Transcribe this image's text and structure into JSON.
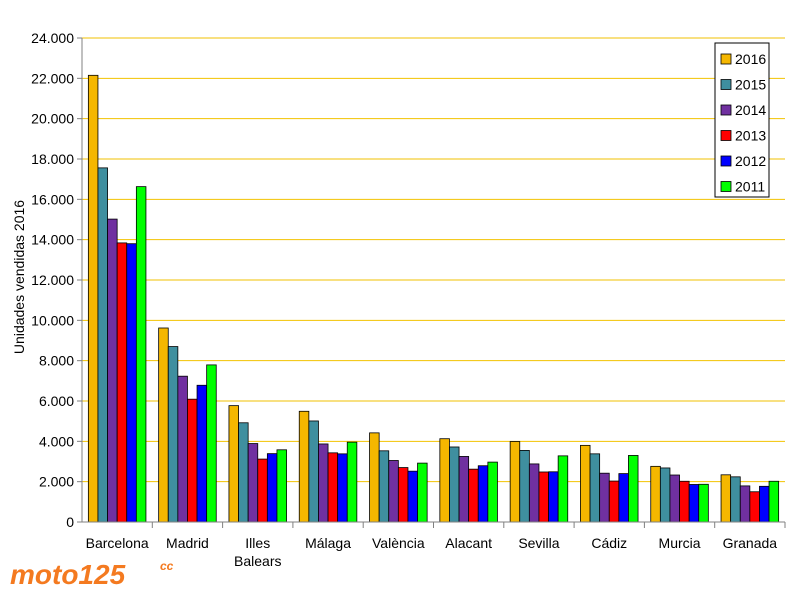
{
  "colors": {
    "grid": "#f2c200",
    "axis": "#808080",
    "series": [
      "#f5b700",
      "#3f8f9f",
      "#7030a0",
      "#ff0000",
      "#0000ff",
      "#00ff00"
    ],
    "logo": "#f47a20"
  },
  "logo": {
    "text": "moto125",
    "suffix": "cc"
  },
  "chart_data": {
    "type": "bar",
    "ylabel": "Unidades vendidas 2016",
    "xlabel": "",
    "title": "",
    "ylim": [
      0,
      24000
    ],
    "ytick_step": 2000,
    "ytick_labels": [
      "0",
      "2.000",
      "4.000",
      "6.000",
      "8.000",
      "10.000",
      "12.000",
      "14.000",
      "16.000",
      "18.000",
      "20.000",
      "22.000",
      "24.000"
    ],
    "grid": true,
    "legend_position": "top-right",
    "categories": [
      "Barcelona",
      "Madrid",
      "Illes Balears",
      "Málaga",
      "València",
      "Alacant",
      "Sevilla",
      "Cádiz",
      "Murcia",
      "Granada"
    ],
    "category_lines": [
      [
        "Barcelona"
      ],
      [
        "Madrid"
      ],
      [
        "Illes",
        "Balears"
      ],
      [
        "Málaga"
      ],
      [
        "València"
      ],
      [
        "Alacant"
      ],
      [
        "Sevilla"
      ],
      [
        "Cádiz"
      ],
      [
        "Murcia"
      ],
      [
        "Granada"
      ]
    ],
    "series": [
      {
        "name": "2016",
        "values": [
          22150,
          9620,
          5770,
          5490,
          4420,
          4130,
          3990,
          3800,
          2760,
          2340
        ]
      },
      {
        "name": "2015",
        "values": [
          17560,
          8700,
          4920,
          5010,
          3530,
          3720,
          3550,
          3380,
          2680,
          2240
        ]
      },
      {
        "name": "2014",
        "values": [
          15020,
          7230,
          3890,
          3870,
          3050,
          3250,
          2880,
          2420,
          2330,
          1790
        ]
      },
      {
        "name": "2013",
        "values": [
          13840,
          6090,
          3120,
          3430,
          2700,
          2620,
          2480,
          2030,
          2020,
          1500
        ]
      },
      {
        "name": "2012",
        "values": [
          13800,
          6780,
          3390,
          3380,
          2520,
          2790,
          2490,
          2400,
          1860,
          1770
        ]
      },
      {
        "name": "2011",
        "values": [
          16630,
          7790,
          3580,
          3960,
          2920,
          2970,
          3280,
          3300,
          1870,
          2020
        ]
      }
    ]
  }
}
